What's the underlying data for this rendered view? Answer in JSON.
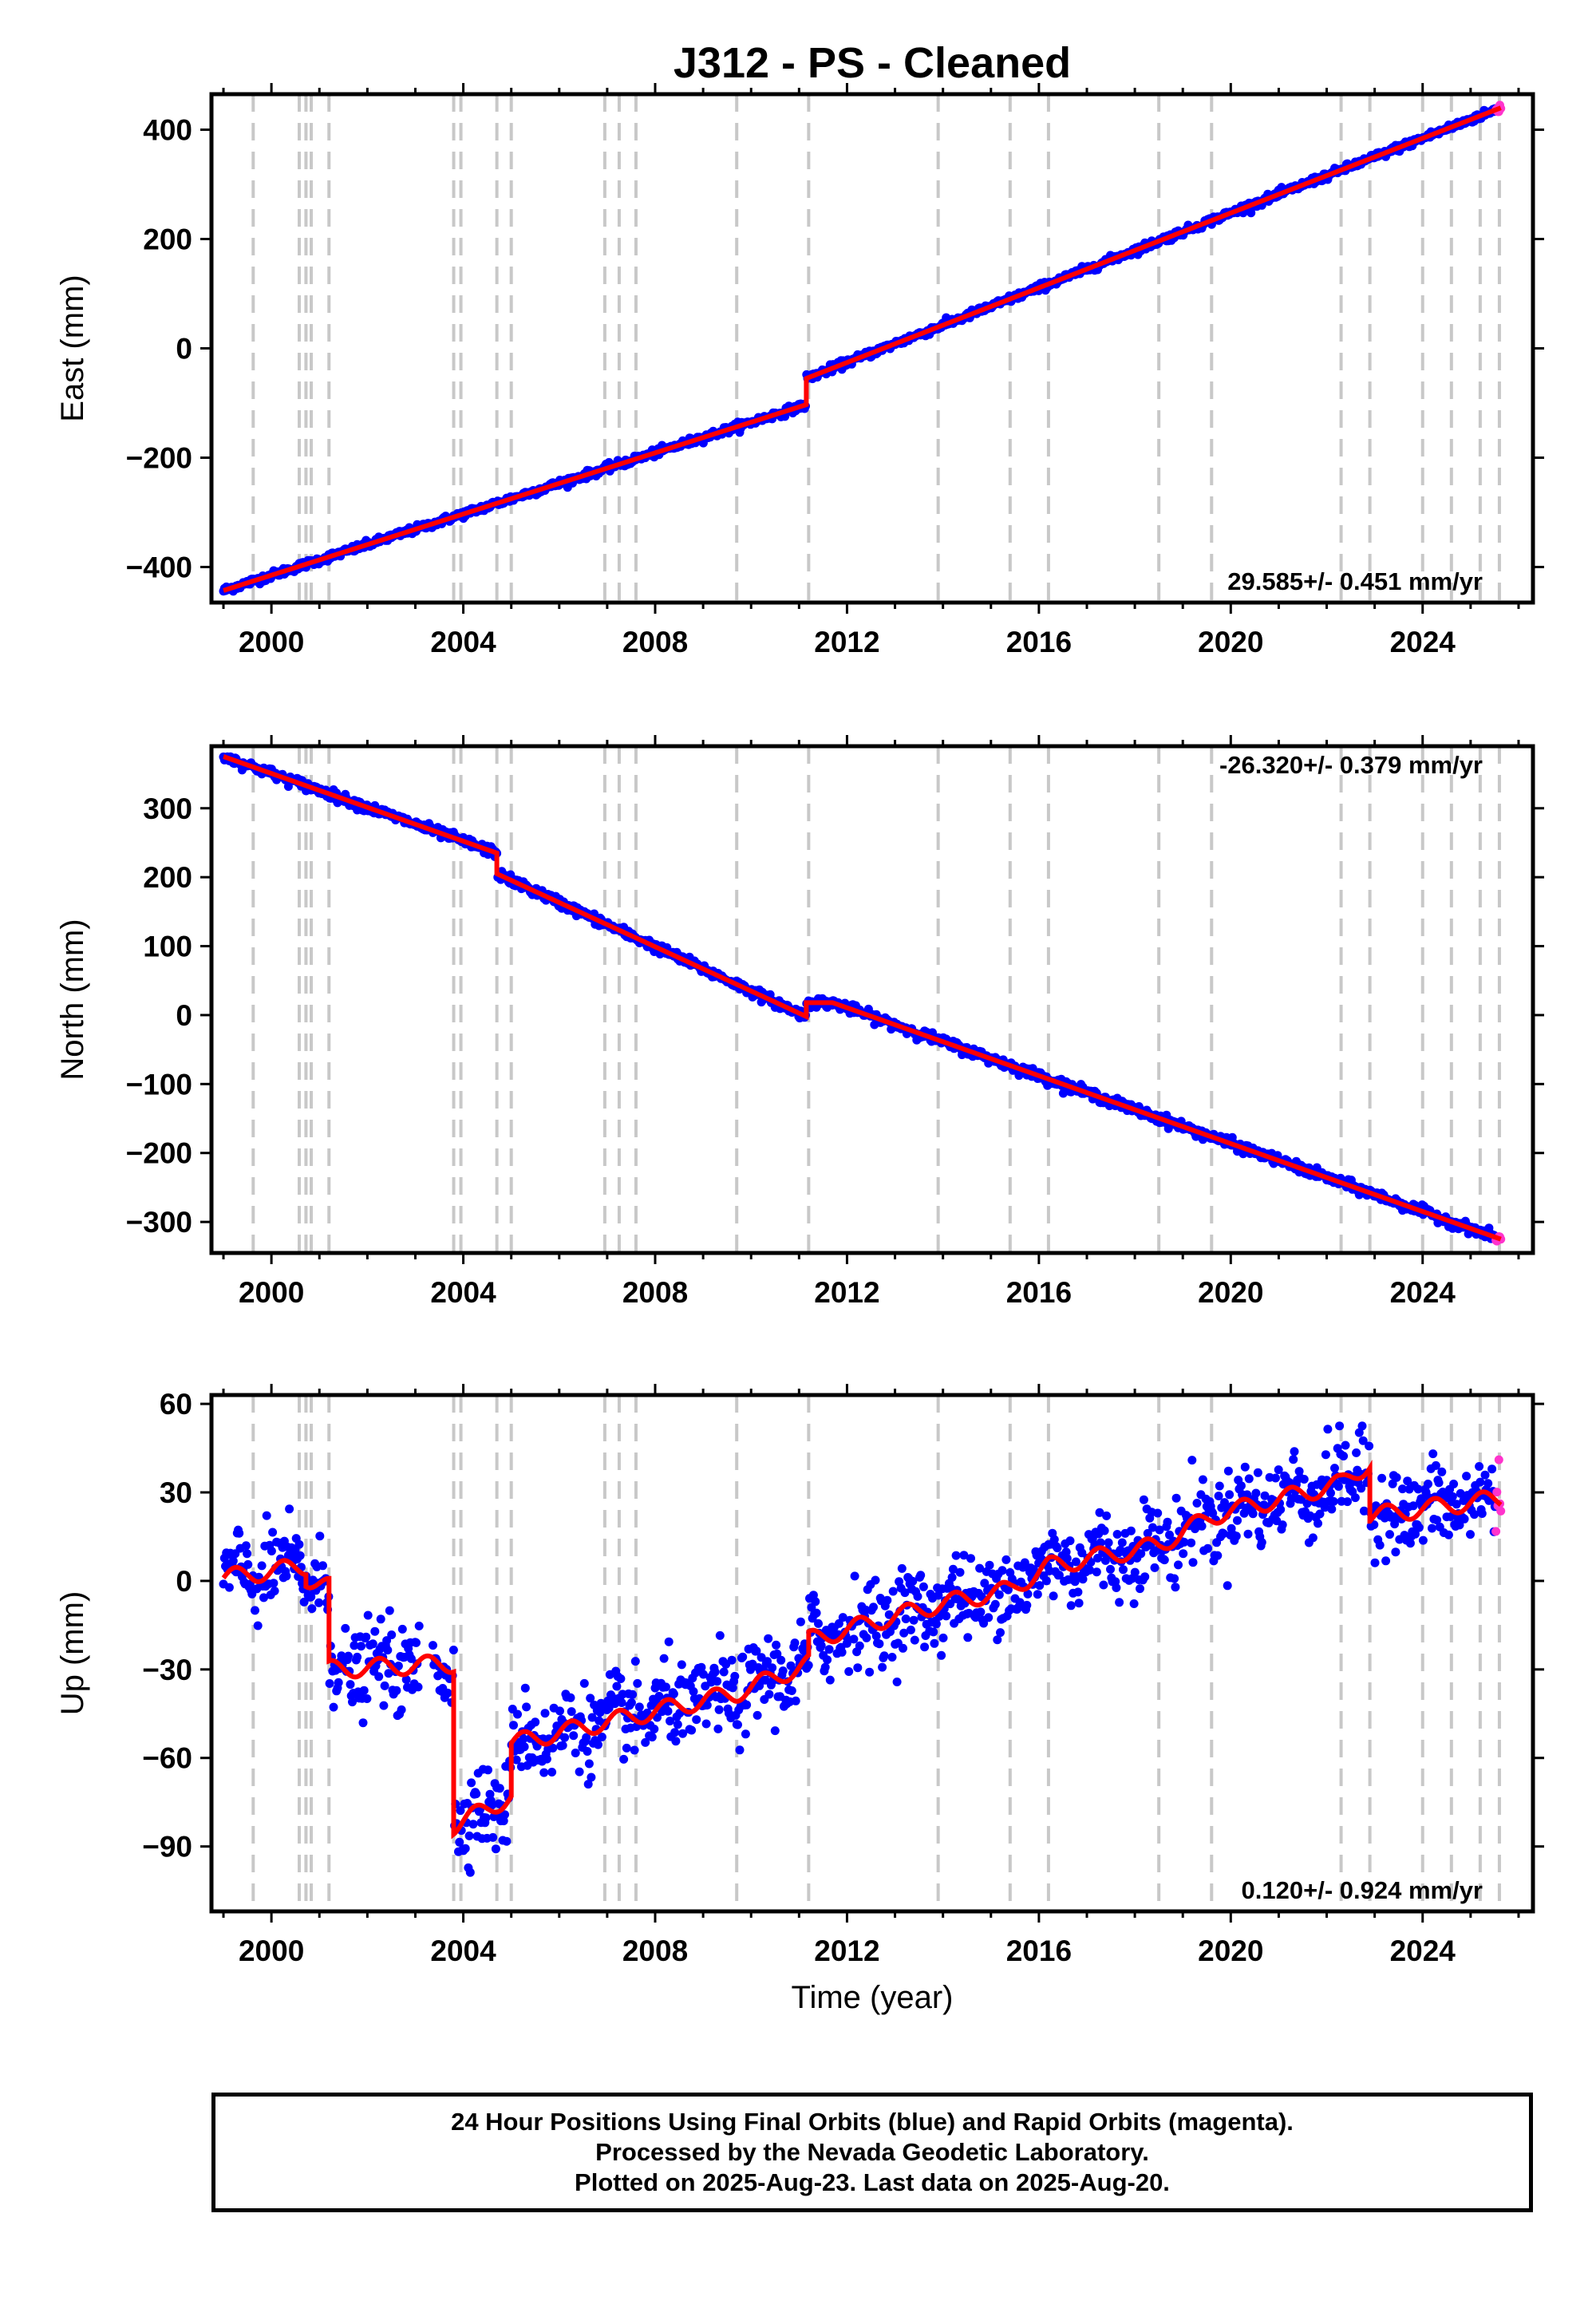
{
  "title": "J312  - PS - Cleaned",
  "xlabel": "Time (year)",
  "x_ticks": [
    2000,
    2004,
    2008,
    2012,
    2016,
    2020,
    2024
  ],
  "x_range": [
    1998.75,
    2026.3
  ],
  "colors": {
    "final": "#0000ff",
    "rapid": "#ff33cc",
    "model": "#ff0000",
    "event": "#c8c8c8"
  },
  "event_lines": [
    1999.62,
    2000.58,
    2000.72,
    2000.83,
    2001.2,
    2003.8,
    2003.95,
    2004.7,
    2005.0,
    2006.95,
    2007.25,
    2007.6,
    2009.7,
    2011.2,
    2013.9,
    2015.4,
    2016.2,
    2018.5,
    2019.6,
    2022.3,
    2022.9,
    2024.0,
    2024.6,
    2025.2,
    2025.6
  ],
  "footer": {
    "line1": "24 Hour Positions Using Final Orbits (blue) and Rapid Orbits (magenta).",
    "line2": "Processed by the Nevada Geodetic Laboratory.",
    "line3": "Plotted on 2025-Aug-23. Last data on 2025-Aug-20."
  },
  "chart_data": [
    {
      "type": "scatter",
      "ylabel": "East (mm)",
      "ylim": [
        -465,
        465
      ],
      "y_ticks": [
        -400,
        -200,
        0,
        200,
        400
      ],
      "rate_label": "29.585+/- 0.451 mm/yr",
      "x_start": 1999.0,
      "x_end": 2025.63,
      "noise_mm": 3.5,
      "model": [
        [
          1999.0,
          -443
        ],
        [
          2011.15,
          -103
        ],
        [
          2011.15,
          -55
        ],
        [
          2025.63,
          440
        ]
      ],
      "series": [
        {
          "name": "Final Orbits (blue)"
        },
        {
          "name": "Rapid Orbits (magenta)"
        }
      ]
    },
    {
      "type": "scatter",
      "ylabel": "North (mm)",
      "ylim": [
        -345,
        390
      ],
      "y_ticks": [
        -300,
        -200,
        -100,
        0,
        100,
        200,
        300
      ],
      "rate_label": "-26.320+/- 0.379 mm/yr",
      "x_start": 1999.0,
      "x_end": 2025.63,
      "noise_mm": 3.5,
      "model": [
        [
          1999.0,
          375
        ],
        [
          2004.7,
          235
        ],
        [
          2004.7,
          205
        ],
        [
          2011.15,
          -2
        ],
        [
          2011.15,
          18
        ],
        [
          2011.7,
          18
        ],
        [
          2025.63,
          -325
        ]
      ],
      "series": [
        {
          "name": "Final Orbits (blue)"
        },
        {
          "name": "Rapid Orbits (magenta)"
        }
      ]
    },
    {
      "type": "scatter",
      "ylabel": "Up (mm)",
      "ylim": [
        -112,
        63
      ],
      "y_ticks": [
        -90,
        -60,
        -30,
        0,
        30,
        60
      ],
      "rate_label": "0.120+/- 0.924 mm/yr",
      "x_start": 1999.0,
      "x_end": 2025.63,
      "noise_mm": 7,
      "gap": [
        2003.1,
        2003.2
      ],
      "seasonal_amp_mm": 3,
      "model": [
        [
          1999.0,
          1
        ],
        [
          2000.72,
          5
        ],
        [
          2000.72,
          1
        ],
        [
          2001.2,
          -2
        ],
        [
          2001.2,
          -30
        ],
        [
          2003.8,
          -28
        ],
        [
          2003.8,
          -83
        ],
        [
          2005.0,
          -73
        ],
        [
          2005.0,
          -55
        ],
        [
          2009.7,
          -38
        ],
        [
          2011.2,
          -28
        ],
        [
          2011.2,
          -20
        ],
        [
          2013.9,
          -8
        ],
        [
          2015.4,
          -3
        ],
        [
          2016.2,
          5
        ],
        [
          2018.5,
          12
        ],
        [
          2019.6,
          22
        ],
        [
          2022.3,
          33
        ],
        [
          2022.9,
          40
        ],
        [
          2022.9,
          22
        ],
        [
          2025.63,
          28
        ]
      ],
      "series": [
        {
          "name": "Final Orbits (blue)"
        },
        {
          "name": "Rapid Orbits (magenta)"
        }
      ]
    }
  ]
}
